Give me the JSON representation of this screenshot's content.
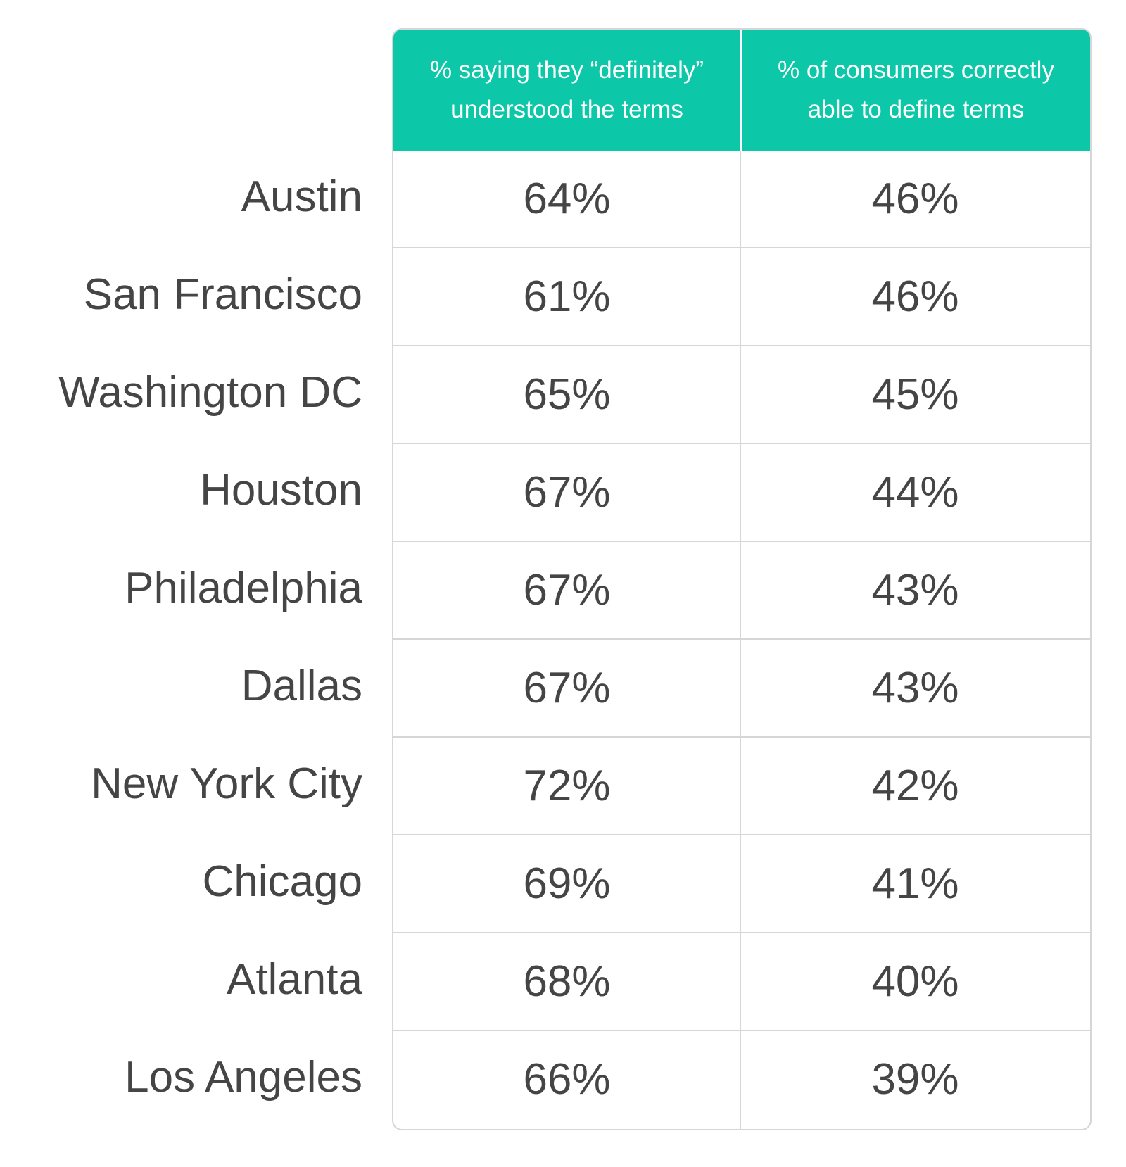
{
  "chart_data": {
    "type": "table",
    "columns": [
      {
        "line1": "% saying they “definitely”",
        "line2": "understood the terms"
      },
      {
        "line1": "% of consumers correctly",
        "line2": "able to define terms"
      }
    ],
    "rows": [
      {
        "city": "Austin",
        "definitely_understood": "64%",
        "correctly_defined": "46%"
      },
      {
        "city": "San Francisco",
        "definitely_understood": "61%",
        "correctly_defined": "46%"
      },
      {
        "city": "Washington DC",
        "definitely_understood": "65%",
        "correctly_defined": "45%"
      },
      {
        "city": "Houston",
        "definitely_understood": "67%",
        "correctly_defined": "44%"
      },
      {
        "city": "Philadelphia",
        "definitely_understood": "67%",
        "correctly_defined": "43%"
      },
      {
        "city": "Dallas",
        "definitely_understood": "67%",
        "correctly_defined": "43%"
      },
      {
        "city": "New York City",
        "definitely_understood": "72%",
        "correctly_defined": "42%"
      },
      {
        "city": "Chicago",
        "definitely_understood": "69%",
        "correctly_defined": "41%"
      },
      {
        "city": "Atlanta",
        "definitely_understood": "68%",
        "correctly_defined": "40%"
      },
      {
        "city": "Los Angeles",
        "definitely_understood": "66%",
        "correctly_defined": "39%"
      }
    ],
    "colors": {
      "header_background": "#0cc8a8",
      "header_text": "#ffffff",
      "body_text": "#454545",
      "grid_lines": "#d6d6d6"
    }
  }
}
